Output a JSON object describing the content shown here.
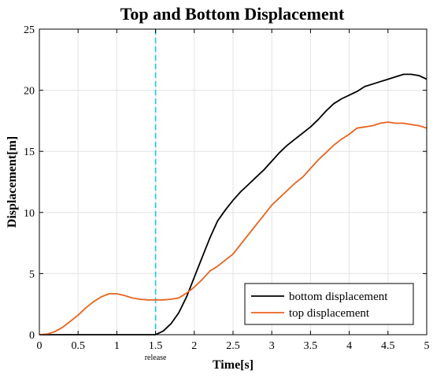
{
  "chart_data": {
    "type": "line",
    "title": "Top and Bottom Displacement",
    "xlabel": "Time[s]",
    "ylabel": "Displacement[m]",
    "xlim": [
      0,
      5
    ],
    "ylim": [
      0,
      25
    ],
    "xticks": [
      0,
      0.5,
      1,
      1.5,
      2,
      2.5,
      3,
      3.5,
      4,
      4.5,
      5
    ],
    "xtick_labels": [
      "0",
      "0.5",
      "1",
      "1.5",
      "2",
      "2.5",
      "3",
      "3.5",
      "4",
      "4.5",
      "5"
    ],
    "yticks": [
      0,
      5,
      10,
      15,
      20,
      25
    ],
    "ytick_labels": [
      "0",
      "5",
      "10",
      "15",
      "20",
      "25"
    ],
    "grid": true,
    "legend_position": "bottom-right",
    "annotations": [
      {
        "type": "vline",
        "x": 1.5,
        "label": "release",
        "color": "#1ec8e6",
        "style": "dashed"
      }
    ],
    "series": [
      {
        "name": "bottom displacement",
        "color": "#000000",
        "x": [
          0,
          0.5,
          1.0,
          1.5,
          1.6,
          1.7,
          1.8,
          1.9,
          2.0,
          2.1,
          2.2,
          2.3,
          2.4,
          2.5,
          2.6,
          2.7,
          2.8,
          2.9,
          3.0,
          3.1,
          3.2,
          3.3,
          3.4,
          3.5,
          3.6,
          3.7,
          3.8,
          3.9,
          4.0,
          4.1,
          4.2,
          4.3,
          4.4,
          4.5,
          4.6,
          4.7,
          4.8,
          4.9,
          5.0
        ],
        "y": [
          0,
          0,
          0,
          0,
          0.3,
          0.9,
          1.8,
          3.1,
          4.7,
          6.3,
          7.9,
          9.3,
          10.2,
          11.0,
          11.7,
          12.3,
          12.9,
          13.5,
          14.2,
          14.9,
          15.5,
          16.0,
          16.5,
          17.0,
          17.6,
          18.3,
          18.9,
          19.3,
          19.6,
          19.9,
          20.3,
          20.5,
          20.7,
          20.9,
          21.1,
          21.3,
          21.3,
          21.2,
          20.9
        ]
      },
      {
        "name": "top displacement",
        "color": "#e8621e",
        "x": [
          0,
          0.1,
          0.2,
          0.3,
          0.4,
          0.5,
          0.6,
          0.7,
          0.8,
          0.9,
          1.0,
          1.1,
          1.2,
          1.3,
          1.4,
          1.5,
          1.6,
          1.7,
          1.8,
          1.9,
          2.0,
          2.1,
          2.2,
          2.3,
          2.4,
          2.5,
          2.6,
          2.7,
          2.8,
          2.9,
          3.0,
          3.1,
          3.2,
          3.3,
          3.4,
          3.5,
          3.6,
          3.7,
          3.8,
          3.9,
          4.0,
          4.1,
          4.2,
          4.3,
          4.4,
          4.5,
          4.6,
          4.7,
          4.8,
          4.9,
          5.0
        ],
        "y": [
          0,
          0.05,
          0.25,
          0.6,
          1.1,
          1.6,
          2.2,
          2.7,
          3.1,
          3.35,
          3.35,
          3.2,
          3.0,
          2.9,
          2.85,
          2.85,
          2.85,
          2.9,
          3.0,
          3.4,
          3.9,
          4.5,
          5.2,
          5.6,
          6.1,
          6.6,
          7.4,
          8.2,
          9.0,
          9.8,
          10.6,
          11.2,
          11.8,
          12.4,
          12.9,
          13.6,
          14.3,
          14.9,
          15.5,
          16.0,
          16.4,
          16.9,
          17.0,
          17.1,
          17.3,
          17.4,
          17.3,
          17.3,
          17.2,
          17.1,
          16.9
        ]
      }
    ]
  }
}
